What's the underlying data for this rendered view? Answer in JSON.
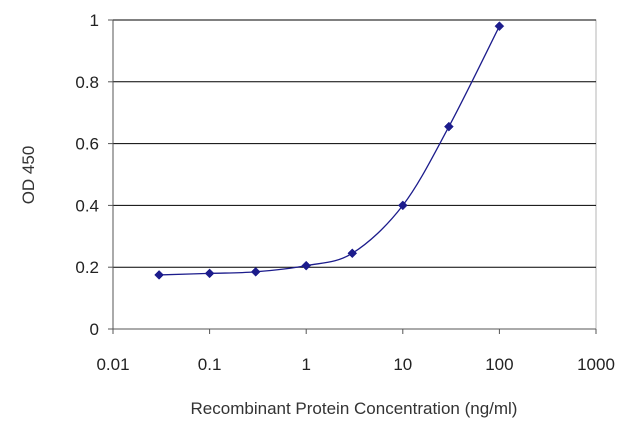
{
  "chart_data": {
    "type": "line",
    "xscale": "log",
    "xlabel": "Recombinant Protein Concentration (ng/ml)",
    "ylabel": "OD 450",
    "xlim": [
      0.01,
      1000
    ],
    "ylim": [
      0,
      1
    ],
    "x_ticks": [
      "0.01",
      "0.1",
      "1",
      "10",
      "100",
      "1000"
    ],
    "y_ticks": [
      "0",
      "0.2",
      "0.4",
      "0.6",
      "0.8",
      "1"
    ],
    "grid": "horizontal",
    "legend": "none",
    "series": [
      {
        "x": [
          0.03,
          0.1,
          0.3,
          1,
          3,
          10,
          30,
          100
        ],
        "y": [
          0.175,
          0.18,
          0.185,
          0.205,
          0.245,
          0.4,
          0.655,
          0.98
        ]
      }
    ],
    "colors": {
      "series": "#1c1c8c",
      "grid": "#000000",
      "frame": "#b5b5b5",
      "plot_bg": "#ffffff"
    }
  }
}
